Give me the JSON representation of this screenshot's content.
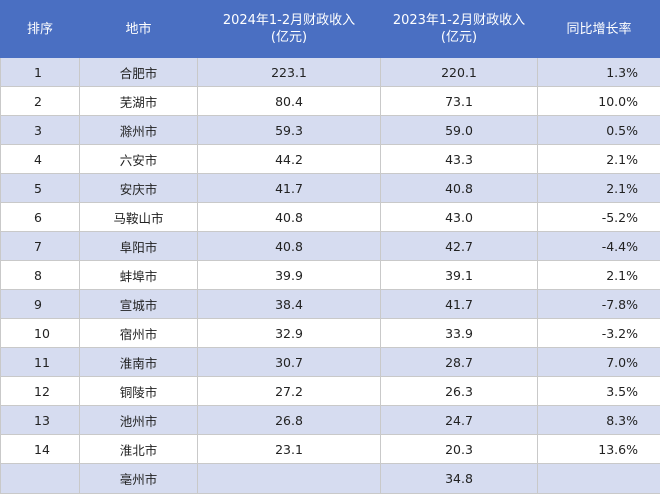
{
  "headers": {
    "rank": "排序",
    "city": "地市",
    "rev2024_line1": "2024年1-2月财政收入",
    "rev2024_line2": "(亿元)",
    "rev2023_line1": "2023年1-2月财政收入",
    "rev2023_line2": "(亿元)",
    "growth": "同比增长率"
  },
  "rows": [
    {
      "rank": "1",
      "city": "合肥市",
      "rev2024": "223.1",
      "rev2023": "220.1",
      "growth": "1.3%"
    },
    {
      "rank": "2",
      "city": "芜湖市",
      "rev2024": "80.4",
      "rev2023": "73.1",
      "growth": "10.0%"
    },
    {
      "rank": "3",
      "city": "滁州市",
      "rev2024": "59.3",
      "rev2023": "59.0",
      "growth": "0.5%"
    },
    {
      "rank": "4",
      "city": "六安市",
      "rev2024": "44.2",
      "rev2023": "43.3",
      "growth": "2.1%"
    },
    {
      "rank": "5",
      "city": "安庆市",
      "rev2024": "41.7",
      "rev2023": "40.8",
      "growth": "2.1%"
    },
    {
      "rank": "6",
      "city": "马鞍山市",
      "rev2024": "40.8",
      "rev2023": "43.0",
      "growth": "-5.2%"
    },
    {
      "rank": "7",
      "city": "阜阳市",
      "rev2024": "40.8",
      "rev2023": "42.7",
      "growth": "-4.4%"
    },
    {
      "rank": "8",
      "city": "蚌埠市",
      "rev2024": "39.9",
      "rev2023": "39.1",
      "growth": "2.1%"
    },
    {
      "rank": "9",
      "city": "宣城市",
      "rev2024": "38.4",
      "rev2023": "41.7",
      "growth": "-7.8%"
    },
    {
      "rank": "10",
      "city": "宿州市",
      "rev2024": "32.9",
      "rev2023": "33.9",
      "growth": "-3.2%"
    },
    {
      "rank": "11",
      "city": "淮南市",
      "rev2024": "30.7",
      "rev2023": "28.7",
      "growth": "7.0%"
    },
    {
      "rank": "12",
      "city": "铜陵市",
      "rev2024": "27.2",
      "rev2023": "26.3",
      "growth": "3.5%"
    },
    {
      "rank": "13",
      "city": "池州市",
      "rev2024": "26.8",
      "rev2023": "24.7",
      "growth": "8.3%"
    },
    {
      "rank": "14",
      "city": "淮北市",
      "rev2024": "23.1",
      "rev2023": "20.3",
      "growth": "13.6%"
    },
    {
      "rank": "",
      "city": "亳州市",
      "rev2024": "",
      "rev2023": "34.8",
      "growth": ""
    }
  ],
  "colors": {
    "header_bg": "#4a6fc2",
    "header_text": "#ffffff",
    "band_row": "#d6dcf0",
    "plain_row": "#ffffff",
    "grid_line": "#c9c9c9"
  }
}
